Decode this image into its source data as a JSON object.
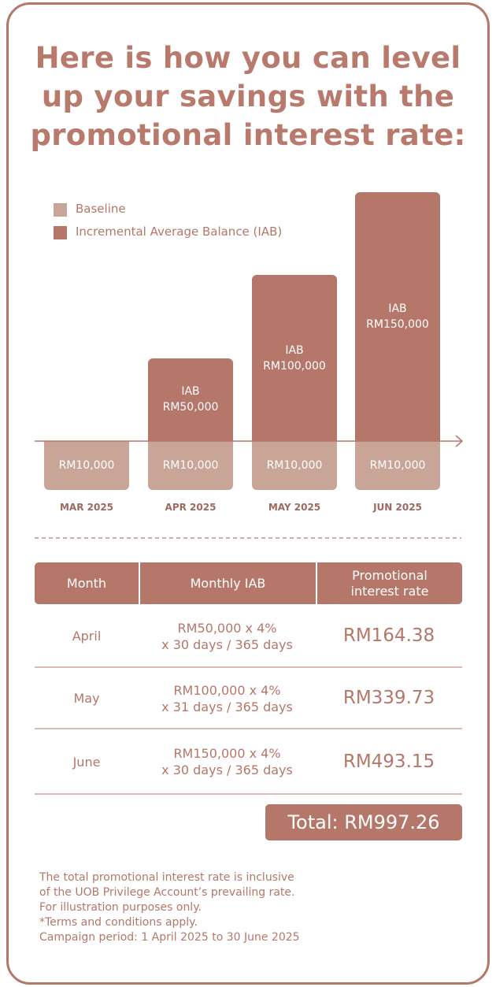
{
  "title": [
    "Here is how you can level",
    "up your savings with the",
    "promotional interest rate:"
  ],
  "chart_data": {
    "type": "bar",
    "stacked": true,
    "categories": [
      "MAR 2025",
      "APR 2025",
      "MAY 2025",
      "JUN 2025"
    ],
    "series": [
      {
        "name": "Baseline",
        "color": "#c9a598",
        "values": [
          10000,
          10000,
          10000,
          10000
        ],
        "value_labels": [
          "RM10,000",
          "RM10,000",
          "RM10,000",
          "RM10,000"
        ]
      },
      {
        "name": "Incremental Average Balance (IAB)",
        "color": "#b5776a",
        "values": [
          0,
          50000,
          100000,
          150000
        ],
        "value_labels": [
          null,
          "IAB RM50,000",
          "IAB RM100,000",
          "IAB RM150,000"
        ]
      }
    ]
  },
  "table": {
    "header": [
      [
        "Month"
      ],
      [
        "Monthly IAB"
      ],
      [
        "Promotional",
        "interest rate"
      ]
    ],
    "rows": [
      [
        [
          "April"
        ],
        [
          "RM50,000 x 4%",
          "x 30 days / 365 days"
        ],
        [
          "RM164.38"
        ]
      ],
      [
        [
          "May"
        ],
        [
          "RM100,000 x 4%",
          "x 31 days / 365 days"
        ],
        [
          "RM339.73"
        ]
      ],
      [
        [
          "June"
        ],
        [
          "RM150,000 x 4%",
          "x 30 days / 365 days"
        ],
        [
          "RM493.15"
        ]
      ]
    ]
  },
  "total": "Total: RM997.26",
  "notes": [
    "The total promotional interest rate is inclusive",
    "of the UOB Privilege Account’s prevailing rate.",
    "For illustration purposes only.",
    "*Terms and conditions apply.",
    "Campaign period: 1 April 2025 to 30 June 2025"
  ]
}
